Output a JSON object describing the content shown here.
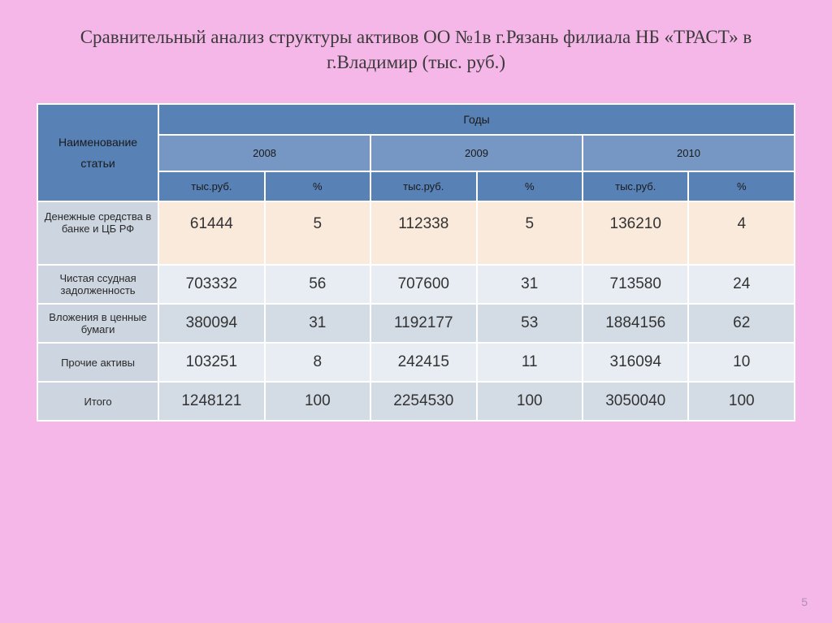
{
  "title": "Сравнительный анализ структуры активов ОО №1в г.Рязань филиала НБ «ТРАСТ» в г.Владимир  (тыс. руб.)",
  "headers": {
    "name_col_line1": "Наименование",
    "name_col_line2": "статьи",
    "years_group": "Годы",
    "years": [
      "2008",
      "2009",
      "2010"
    ],
    "unit_abs": "тыс.руб.",
    "unit_pct": "%"
  },
  "rows": [
    {
      "label": "Денежные средства в банке и ЦБ РФ",
      "vals": [
        "61444",
        "5",
        "112338",
        "5",
        "136210",
        "4"
      ],
      "style": "alt1",
      "tall": true
    },
    {
      "label": "Чистая ссудная задолженность",
      "vals": [
        "703332",
        "56",
        "707600",
        "31",
        "713580",
        "24"
      ],
      "style": "alt2"
    },
    {
      "label": "Вложения в ценные бумаги",
      "vals": [
        "380094",
        "31",
        "1192177",
        "53",
        "1884156",
        "62"
      ],
      "style": "alt3"
    },
    {
      "label": "Прочие активы",
      "vals": [
        "103251",
        "8",
        "242415",
        "11",
        "316094",
        "10"
      ],
      "style": "alt2"
    },
    {
      "label": "Итого",
      "vals": [
        "1248121",
        "100",
        "2254530",
        "100",
        "3050040",
        "100"
      ],
      "style": "alt3"
    }
  ],
  "page_number": "5",
  "colors": {
    "slide_bg": "#f5b6e8",
    "hdr_top": "#5881b5",
    "hdr_year": "#7697c3",
    "rowlabel_bg": "#cdd5e0",
    "alt1": "#faeadb",
    "alt2": "#e8edf3",
    "alt3": "#d3dbe5",
    "border": "#ffffff"
  }
}
